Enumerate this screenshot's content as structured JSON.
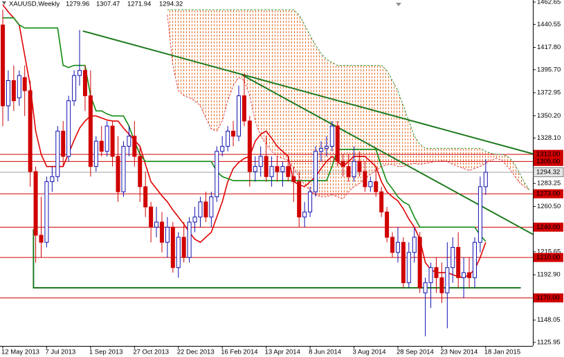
{
  "chart_data": {
    "type": "candlestick",
    "title": "XAUUSD,Weekly",
    "categories": [
      "12 May 2013",
      null,
      null,
      null,
      null,
      null,
      null,
      null,
      "7 Jul 2013",
      null,
      null,
      null,
      null,
      null,
      null,
      null,
      "1 Sep 2013",
      null,
      null,
      null,
      null,
      null,
      null,
      null,
      "27 Oct 2013",
      null,
      null,
      null,
      null,
      null,
      null,
      null,
      "22 Dec 2013",
      null,
      null,
      null,
      null,
      null,
      null,
      null,
      "16 Feb 2014",
      null,
      null,
      null,
      null,
      null,
      null,
      null,
      "13 Apr 2014",
      null,
      null,
      null,
      null,
      null,
      null,
      null,
      "8 Jun 2014",
      null,
      null,
      null,
      null,
      null,
      null,
      null,
      "3 Aug 2014",
      null,
      null,
      null,
      null,
      null,
      null,
      null,
      "28 Sep 2014",
      null,
      null,
      null,
      null,
      null,
      null,
      null,
      "23 Nov 2014",
      null,
      null,
      null,
      null,
      null,
      null,
      null,
      "18 Jan 2015",
      null,
      null,
      null,
      null,
      null,
      null,
      null,
      null
    ],
    "open": [
      1440,
      1360,
      1385,
      1368,
      1388,
      1375,
      1295,
      1232,
      1225,
      1285,
      1290,
      1335,
      1310,
      1365,
      1390,
      1395,
      1370,
      1300,
      1325,
      1315,
      1340,
      1310,
      1275,
      1320,
      1330,
      1310,
      1280,
      1260,
      1240,
      1245,
      1225,
      1240,
      1200,
      1230,
      1210,
      1245,
      1250,
      1265,
      1250,
      1270,
      1315,
      1320,
      1335,
      1330,
      1370,
      1345,
      1295,
      1300,
      1310,
      1290,
      1300,
      1295,
      1300,
      1290,
      1285,
      1250,
      1255,
      1275,
      1315,
      1318,
      1320,
      1340,
      1305,
      1300,
      1290,
      1305,
      1295,
      1280,
      1285,
      1275,
      1255,
      1230,
      1215,
      1225,
      1185,
      1215,
      1230,
      1175,
      1185,
      1200,
      1190,
      1175,
      1200,
      1220,
      1190,
      1195,
      1190,
      1225,
      1279.96,
      null,
      null,
      null,
      null,
      null,
      null,
      null,
      null
    ],
    "high": [
      1455,
      1395,
      1400,
      1395,
      1400,
      1385,
      1300,
      1270,
      1290,
      1300,
      1340,
      1345,
      1370,
      1395,
      1435,
      1400,
      1395,
      1330,
      1340,
      1345,
      1345,
      1330,
      1325,
      1340,
      1345,
      1320,
      1295,
      1265,
      1260,
      1255,
      1250,
      1245,
      1235,
      1245,
      1250,
      1260,
      1270,
      1275,
      1275,
      1320,
      1330,
      1340,
      1345,
      1380,
      1392,
      1350,
      1310,
      1320,
      1330,
      1310,
      1310,
      1305,
      1310,
      1300,
      1295,
      1265,
      1280,
      1320,
      1325,
      1330,
      1345,
      1345,
      1312,
      1312,
      1320,
      1315,
      1305,
      1290,
      1300,
      1280,
      1260,
      1235,
      1240,
      1230,
      1225,
      1240,
      1235,
      1190,
      1205,
      1210,
      1205,
      1225,
      1230,
      1235,
      1210,
      1210,
      1230,
      1290,
      1307.47,
      null,
      null,
      null,
      null,
      null,
      null,
      null,
      null
    ],
    "low": [
      1340,
      1345,
      1355,
      1360,
      1350,
      1280,
      1205,
      1210,
      1220,
      1275,
      1285,
      1300,
      1305,
      1360,
      1380,
      1355,
      1290,
      1295,
      1310,
      1310,
      1300,
      1265,
      1270,
      1310,
      1300,
      1265,
      1250,
      1225,
      1230,
      1215,
      1210,
      1195,
      1190,
      1205,
      1205,
      1235,
      1240,
      1245,
      1240,
      1265,
      1310,
      1315,
      1320,
      1325,
      1340,
      1280,
      1285,
      1290,
      1285,
      1280,
      1285,
      1280,
      1285,
      1265,
      1240,
      1240,
      1250,
      1270,
      1305,
      1310,
      1315,
      1300,
      1290,
      1285,
      1285,
      1290,
      1275,
      1275,
      1270,
      1250,
      1225,
      1210,
      1205,
      1180,
      1180,
      1205,
      1175,
      1132,
      1160,
      1175,
      1165,
      1140,
      1185,
      1180,
      1170,
      1180,
      1180,
      1215,
      1271.94,
      null,
      null,
      null,
      null,
      null,
      null,
      null,
      null
    ],
    "close": [
      1360,
      1385,
      1365,
      1390,
      1375,
      1295,
      1232,
      1225,
      1285,
      1290,
      1335,
      1310,
      1365,
      1390,
      1395,
      1370,
      1300,
      1325,
      1315,
      1340,
      1310,
      1275,
      1320,
      1330,
      1310,
      1280,
      1260,
      1240,
      1245,
      1225,
      1240,
      1200,
      1230,
      1210,
      1245,
      1250,
      1265,
      1250,
      1270,
      1315,
      1320,
      1335,
      1330,
      1370,
      1345,
      1295,
      1300,
      1310,
      1290,
      1300,
      1295,
      1300,
      1290,
      1285,
      1250,
      1255,
      1275,
      1315,
      1318,
      1320,
      1340,
      1305,
      1300,
      1290,
      1305,
      1295,
      1280,
      1285,
      1275,
      1255,
      1230,
      1215,
      1225,
      1185,
      1215,
      1230,
      1180,
      1185,
      1200,
      1190,
      1175,
      1200,
      1220,
      1190,
      1195,
      1190,
      1225,
      1280,
      1294.32,
      null,
      null,
      null,
      null,
      null,
      null,
      null,
      null
    ],
    "up_color": "#1010b0",
    "down_color": "#d00000",
    "series": [
      {
        "color": "#e00000",
        "style": "solid",
        "values": [
          1460,
          1453,
          1447,
          1440,
          1410,
          1380,
          1335,
          1312,
          1300,
          1300,
          1300,
          1300,
          1313,
          1326,
          1338,
          1345,
          1350,
          1350,
          1348,
          1346,
          1345,
          1345,
          1338,
          1332,
          1326,
          1320,
          1302,
          1285,
          1278,
          1271,
          1265,
          1257,
          1250,
          1243,
          1235,
          1228,
          1225,
          1230,
          1235,
          1250,
          1265,
          1285,
          1298,
          1304,
          1308,
          1310,
          1325,
          1332,
          1335,
          1328,
          1320,
          1315,
          1310,
          1285,
          1282,
          1280,
          1285,
          1290,
          1298,
          1305,
          1310,
          1305,
          1300,
          1305,
          1310,
          1310,
          1310,
          1305,
          1300,
          1285,
          1275,
          1270,
          1266,
          1258,
          1248,
          1240,
          1228,
          1205,
          1198,
          1195,
          1195,
          1195,
          1193,
          1191,
          1190,
          1193,
          1198,
          1210,
          1225,
          null,
          null,
          null,
          null,
          null,
          null,
          null,
          null
        ]
      },
      {
        "color": "#108a10",
        "style": "solid",
        "values": [
          1447,
          1447,
          1447,
          1440,
          1437,
          1437,
          1437,
          1437,
          1437,
          1437,
          1437,
          1400,
          1398,
          1400,
          1400,
          1400,
          1370,
          1355,
          1355,
          1352,
          1350,
          1350,
          1350,
          1340,
          1325,
          1312,
          1305,
          1305,
          1305,
          1305,
          1305,
          1305,
          1305,
          1305,
          1305,
          1305,
          1305,
          1305,
          1305,
          1295,
          1290,
          1288,
          1286,
          1286,
          1286,
          1286,
          1286,
          1286,
          1286,
          1286,
          1286,
          1286,
          1286,
          1286,
          1286,
          1286,
          1286,
          1286,
          1286,
          1286,
          1300,
          1317,
          1317,
          1317,
          1317,
          1317,
          1317,
          1317,
          1317,
          1300,
          1285,
          1278,
          1270,
          1265,
          1262,
          1250,
          1240,
          1240,
          1240,
          1240,
          1240,
          1240,
          1240,
          1240,
          1240,
          1240,
          1240,
          1232,
          1226,
          null,
          null,
          null,
          null,
          null,
          null,
          null,
          null
        ]
      },
      {
        "color": "#e04040",
        "style": "dashed",
        "values": [
          null,
          null,
          null,
          null,
          null,
          null,
          null,
          null,
          null,
          null,
          null,
          null,
          null,
          null,
          null,
          null,
          null,
          null,
          null,
          null,
          null,
          null,
          null,
          null,
          null,
          null,
          null,
          null,
          null,
          null,
          1450,
          1400,
          1375,
          1370,
          1368,
          1365,
          1360,
          1348,
          1337,
          1335,
          1345,
          1365,
          1380,
          1388,
          1385,
          1370,
          1345,
          1330,
          1322,
          1315,
          1310,
          1308,
          1306,
          1298,
          1290,
          1282,
          1276,
          1272,
          1270,
          1270,
          1272,
          1270,
          1268,
          1275,
          1280,
          1283,
          1288,
          1292,
          1296,
          1300,
          1302,
          1302,
          1300,
          1300,
          1302,
          1303,
          1302,
          1303,
          1304,
          1305,
          1306,
          1305,
          1302,
          1300,
          1298,
          1296,
          1298,
          1300,
          1303,
          1306,
          1308,
          1306,
          1300,
          1293,
          1285,
          1280,
          1277
        ]
      },
      {
        "color": "#3a9a3a",
        "style": "dashed",
        "values": [
          null,
          null,
          null,
          null,
          null,
          null,
          null,
          null,
          null,
          null,
          null,
          null,
          null,
          null,
          null,
          null,
          null,
          null,
          null,
          null,
          null,
          null,
          null,
          null,
          null,
          null,
          null,
          null,
          null,
          null,
          1455,
          1455,
          1455,
          1455,
          1455,
          1455,
          1455,
          1455,
          1455,
          1455,
          1455,
          1455,
          1455,
          1455,
          1455,
          1455,
          1455,
          1455,
          1455,
          1455,
          1455,
          1455,
          1455,
          1455,
          1450,
          1440,
          1430,
          1420,
          1412,
          1406,
          1403,
          1400,
          1400,
          1400,
          1400,
          1400,
          1400,
          1400,
          1400,
          1400,
          1395,
          1385,
          1375,
          1360,
          1345,
          1330,
          1322,
          1318,
          1318,
          1318,
          1318,
          1318,
          1318,
          1318,
          1318,
          1318,
          1318,
          1318,
          1315,
          1313,
          1312,
          1312,
          1310,
          1305,
          1295,
          1285,
          1276
        ]
      }
    ],
    "cloud_color": "#e8702a",
    "trend_lines": [
      {
        "color": "#1e7a1e",
        "points": [
          [
            14.6,
            1434
          ],
          [
            96.6,
            1312.5
          ]
        ]
      },
      {
        "color": "#1e7a1e",
        "points": [
          [
            43.6,
            1390.6
          ],
          [
            96.6,
            1232.9
          ]
        ]
      },
      {
        "color": "#1e7a1e",
        "points": [
          [
            5.6,
            1238
          ],
          [
            5.6,
            1180
          ],
          [
            94.4,
            1180
          ]
        ]
      }
    ],
    "levels": [
      {
        "value": 1312,
        "label": "1312.00"
      },
      {
        "value": 1305,
        "label": "1305.00"
      },
      {
        "value": 1273,
        "label": "1273.00"
      },
      {
        "value": 1240,
        "label": "1240.00"
      },
      {
        "value": 1210,
        "label": "1210.00"
      },
      {
        "value": 1170,
        "label": "1170.00"
      }
    ],
    "level_color": "#d00000",
    "ylim": [
      1122.5,
      1464.7
    ],
    "yticks": [
      1462.65,
      1440.55,
      {
        "value": 1417.8,
        "label": "1417.80"
      },
      {
        "value": 1395.7,
        "label": "1395.70"
      },
      1372.95,
      {
        "value": 1350.2,
        "label": "1350.20"
      },
      {
        "value": 1328.1,
        "label": "1328.10"
      },
      1283.25,
      {
        "value": 1260.5,
        "label": "1260.50"
      },
      1215.65,
      {
        "value": 1192.9,
        "label": "1192.90"
      },
      1148.05,
      1125.95
    ]
  }
}
